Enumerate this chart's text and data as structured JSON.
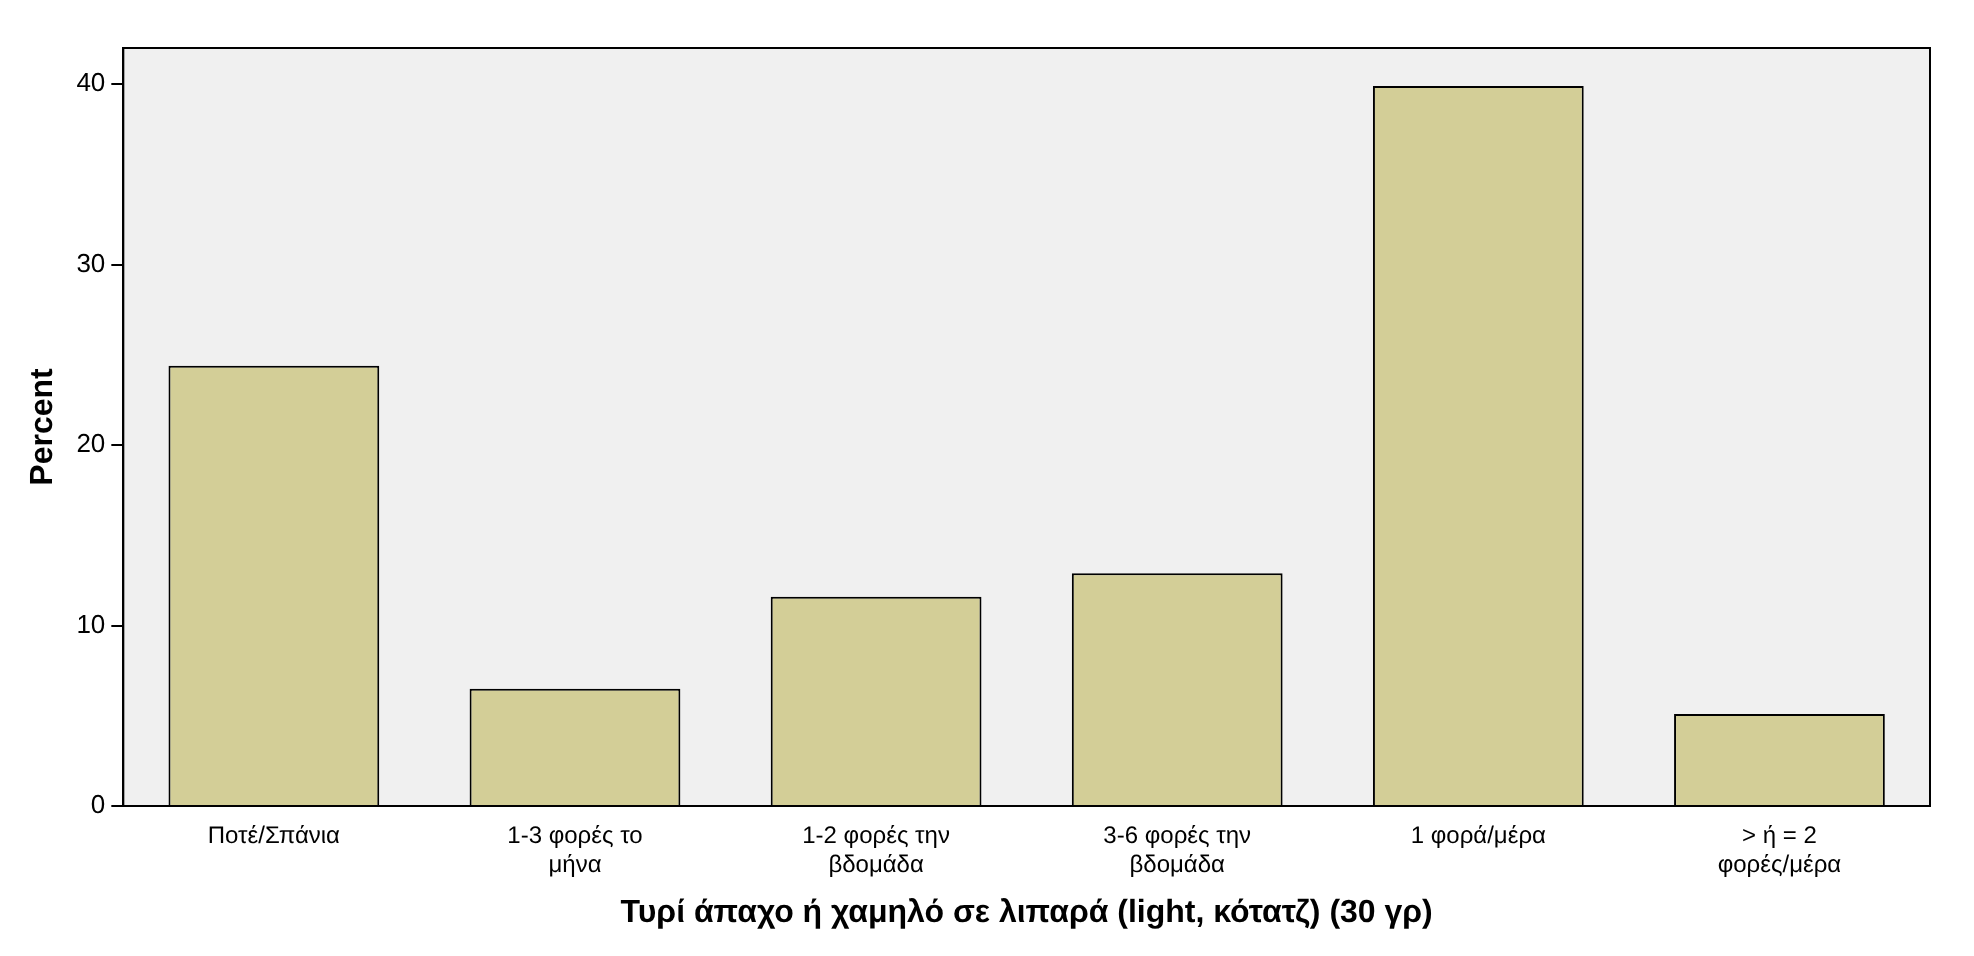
{
  "chart_data": {
    "type": "bar",
    "xlabel": "Τυρί άπαχο ή χαμηλό σε λιπαρά (light, κότατζ) (30 γρ)",
    "ylabel": "Percent",
    "categories": [
      "Ποτέ/Σπάνια",
      "1-3 φορές το μήνα",
      "1-2 φορές την βδομάδα",
      "3-6 φορές την βδομάδα",
      "1 φορά/μέρα",
      "> ή = 2 φορές/μέρα"
    ],
    "values": [
      24.4,
      6.5,
      11.6,
      12.9,
      39.9,
      5.1
    ],
    "color": "#d3ce97",
    "ylim": [
      0,
      42
    ],
    "yticks": [
      0,
      10,
      20,
      30,
      40
    ],
    "grid": false,
    "legend": false
  }
}
